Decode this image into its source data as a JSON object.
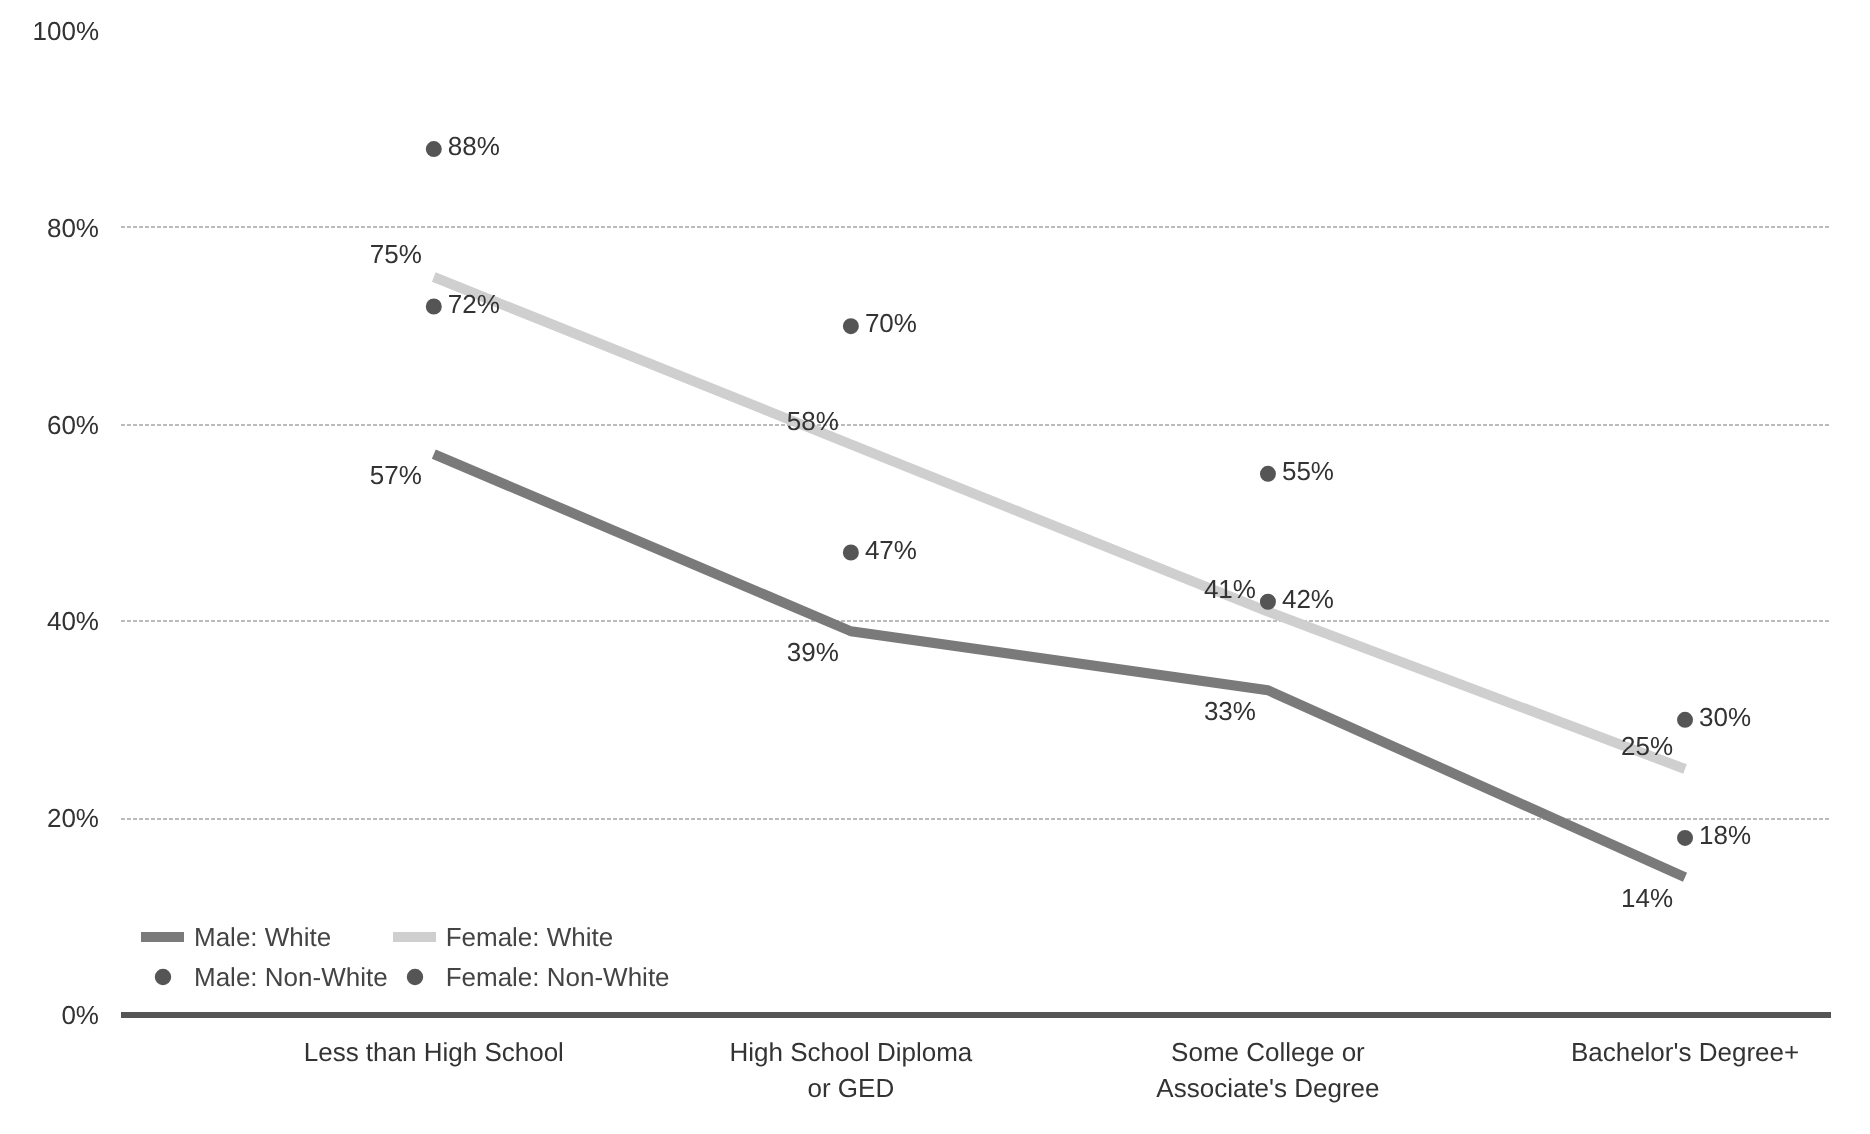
{
  "chart_data": {
    "type": "line",
    "categories": [
      "Less than High School",
      "High School Diploma\nor GED",
      "Some College or\nAssociate's Degree",
      "Bachelor's Degree+"
    ],
    "series": [
      {
        "name": "Male: White",
        "color": "#7a7a7a",
        "values": [
          57,
          39,
          33,
          14
        ],
        "value_labels": [
          "57%",
          "39%",
          "33%",
          "14%"
        ]
      },
      {
        "name": "Female: White",
        "color": "#cfcfcf",
        "values": [
          75,
          58,
          41,
          25
        ],
        "value_labels": [
          "75%",
          "58%",
          "41%",
          "25%"
        ]
      },
      {
        "name": "Male: Non-White",
        "type": "scatter",
        "marker": "circle",
        "color": "#555555",
        "values": [
          72,
          47,
          42,
          18
        ],
        "value_labels": [
          "72%",
          "47%",
          "42%",
          "18%"
        ]
      },
      {
        "name": "Female: Non-White",
        "type": "scatter",
        "marker": "circle",
        "color": "#555555",
        "values": [
          88,
          70,
          55,
          30
        ],
        "value_labels": [
          "88%",
          "70%",
          "55%",
          "30%"
        ]
      }
    ],
    "ylim": [
      0,
      100
    ],
    "yticks": [
      {
        "value": 0,
        "label": "0%"
      },
      {
        "value": 20,
        "label": "20%"
      },
      {
        "value": 40,
        "label": "40%"
      },
      {
        "value": 60,
        "label": "60%"
      },
      {
        "value": 80,
        "label": "80%"
      },
      {
        "value": 100,
        "label": "100%"
      }
    ],
    "grid": "y",
    "legend": "bottom left"
  }
}
